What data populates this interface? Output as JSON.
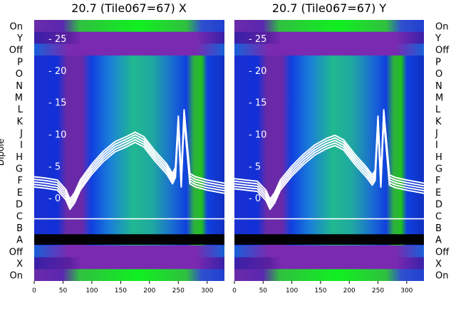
{
  "chart_data": [
    {
      "type": "heatmap",
      "title": "20.7 (Tile067=67) X",
      "ylabel": "Dipole",
      "row_labels_top_to_bottom": [
        "On",
        "Y",
        "Off",
        "P",
        "O",
        "N",
        "M",
        "L",
        "K",
        "J",
        "I",
        "H",
        "G",
        "F",
        "E",
        "D",
        "C",
        "B",
        "A",
        "Off",
        "X",
        "On"
      ],
      "x_ticks": [
        0,
        50,
        100,
        150,
        200,
        250,
        300
      ],
      "xlim": [
        0,
        330
      ],
      "overlay_yticks": [
        0,
        5,
        10,
        15,
        20,
        25
      ],
      "overlay_ytick_labels": [
        "- 0",
        "- 5",
        "- 10",
        "- 15",
        "- 20",
        "- 25"
      ],
      "overlay_ylim": [
        -3,
        27
      ],
      "line_overlay": {
        "x": [
          0,
          20,
          40,
          55,
          62,
          70,
          80,
          100,
          120,
          140,
          160,
          175,
          190,
          210,
          230,
          240,
          245,
          250,
          255,
          260,
          270,
          280,
          300,
          330
        ],
        "y": [
          2.5,
          2.3,
          2.0,
          0.5,
          -1.0,
          0.0,
          2.0,
          4.5,
          6.5,
          8.0,
          8.8,
          9.5,
          8.8,
          6.5,
          4.5,
          3.0,
          4.0,
          12,
          2.5,
          13,
          3.0,
          2.5,
          2.0,
          1.5
        ]
      }
    },
    {
      "type": "heatmap",
      "title": "20.7 (Tile067=67) Y",
      "row_labels_top_to_bottom": [
        "On",
        "Y",
        "Off",
        "P",
        "O",
        "N",
        "M",
        "L",
        "K",
        "J",
        "I",
        "H",
        "G",
        "F",
        "E",
        "D",
        "C",
        "B",
        "A",
        "Off",
        "X",
        "On"
      ],
      "x_ticks": [
        0,
        50,
        100,
        150,
        200,
        250,
        300
      ],
      "xlim": [
        0,
        330
      ],
      "overlay_yticks": [
        0,
        5,
        10,
        15,
        20,
        25
      ],
      "overlay_ytick_labels": [
        "- 0",
        "- 5",
        "- 10",
        "- 15",
        "- 20",
        "- 25"
      ],
      "overlay_ylim": [
        -3,
        27
      ],
      "line_overlay": {
        "x": [
          0,
          20,
          40,
          55,
          62,
          70,
          80,
          100,
          120,
          140,
          160,
          175,
          190,
          210,
          230,
          240,
          245,
          250,
          255,
          260,
          270,
          280,
          300,
          330
        ],
        "y": [
          2.2,
          2.0,
          1.8,
          0.4,
          -1.0,
          0.0,
          2.0,
          4.2,
          6.0,
          7.5,
          8.5,
          9.0,
          8.3,
          6.0,
          4.0,
          2.8,
          3.5,
          12,
          2.5,
          13,
          2.8,
          2.4,
          2.0,
          1.5
        ]
      }
    }
  ]
}
